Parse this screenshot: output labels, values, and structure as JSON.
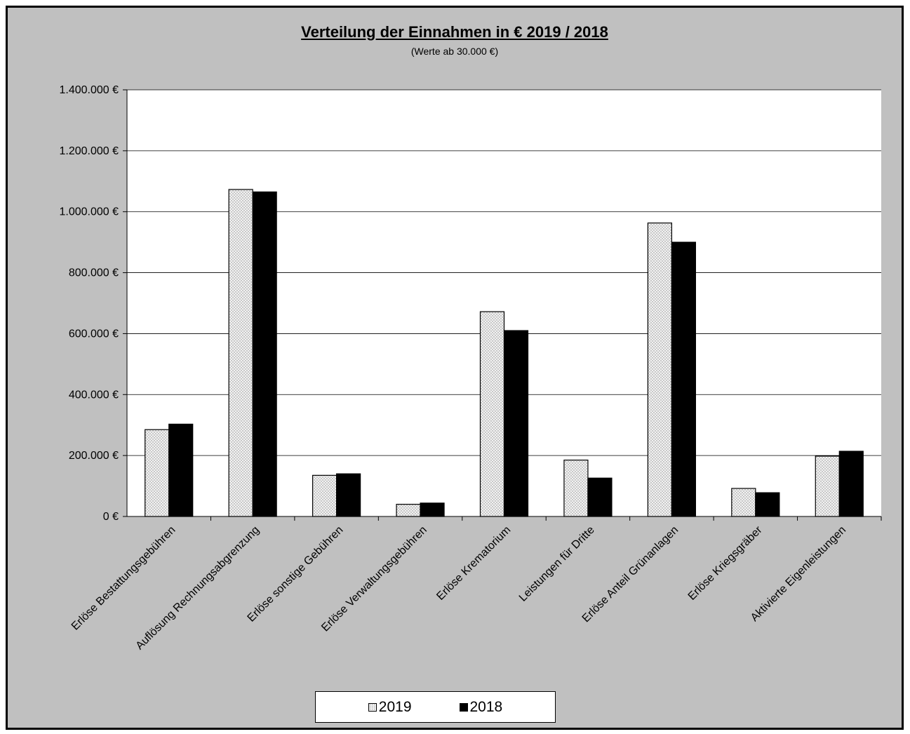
{
  "chart_data": {
    "type": "bar",
    "title": "Verteilung der Einnahmen in € 2019 / 2018",
    "subtitle": "(Werte ab 30.000 €)",
    "categories": [
      "Erlöse Bestattungsgebühren",
      "Auflösung Rechnungsabgrenzung",
      "Erlöse sonstige Gebühren",
      "Erlöse Verwaltungsgebühren",
      "Erlöse Krematorium",
      "Leistungen für Dritte",
      "Erlöse Anteil Grünanlagen",
      "Erlöse Kriegsgräber",
      "Aktivierte Eigenleistungen"
    ],
    "series": [
      {
        "name": "2019",
        "color": "#e6e6e6",
        "pattern": "dotted",
        "values": [
          285000,
          1073000,
          135000,
          40000,
          672000,
          185000,
          963000,
          92000,
          198000
        ]
      },
      {
        "name": "2018",
        "color": "#000000",
        "pattern": "solid",
        "values": [
          303000,
          1065000,
          140000,
          44000,
          610000,
          126000,
          900000,
          78000,
          214000
        ]
      }
    ],
    "yticks": [
      "0 €",
      "200.000 €",
      "400.000 €",
      "600.000 €",
      "800.000 €",
      "1.000.000 €",
      "1.200.000 €",
      "1.400.000 €"
    ],
    "ylim": [
      0,
      1400000
    ],
    "grid": true,
    "legend_position": "bottom",
    "xlabel": "",
    "ylabel": ""
  }
}
